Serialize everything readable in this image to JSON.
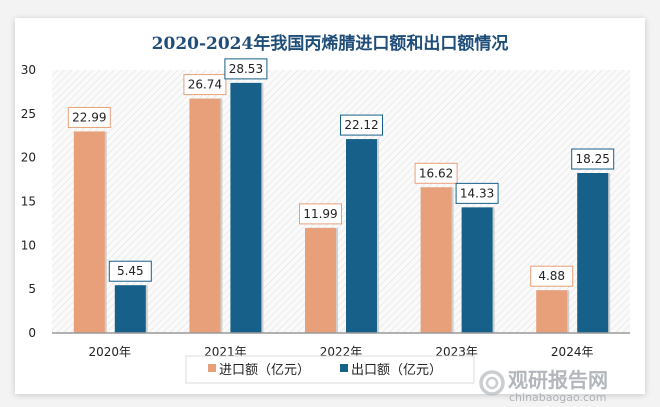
{
  "chart_data": {
    "type": "bar",
    "title": "2020-2024年我国丙烯腈进口额和出口额情况",
    "categories": [
      "2020年",
      "2021年",
      "2022年",
      "2023年",
      "2024年"
    ],
    "series": [
      {
        "name": "进口额（亿元）",
        "color": "#e8a07a",
        "values": [
          22.99,
          26.74,
          11.99,
          16.62,
          4.88
        ]
      },
      {
        "name": "出口额（亿元）",
        "color": "#17608a",
        "values": [
          5.45,
          28.53,
          22.12,
          14.33,
          18.25
        ]
      }
    ],
    "ylim": [
      0,
      30
    ],
    "yticks": [
      0,
      5,
      10,
      15,
      20,
      25,
      30
    ],
    "xlabel": "",
    "ylabel": "",
    "grid": false,
    "legend": "bottom",
    "data_labels": true
  },
  "watermark": {
    "name": "观研报告网",
    "url": "chinabaogao.com"
  }
}
